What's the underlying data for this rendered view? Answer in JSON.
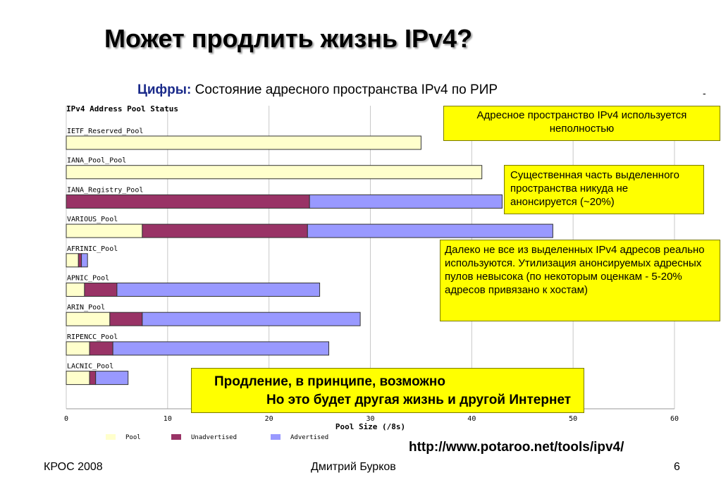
{
  "slide": {
    "title": "Может продлить жизнь IPv4?",
    "subtitle_label": "Цифры:",
    "subtitle_text": " Состояние адресного пространства IPv4 по РИР",
    "dash": "-",
    "callout_1": "Адресное пространство IPv4 используется неполностью",
    "callout_2": "Существенная часть выделенного пространства никуда не анонсируется (~20%)",
    "callout_3": "Далеко не все из выделенных IPv4 адресов реально используются. Утилизация анонсируемых адресных пулов невысока (по некоторым оценкам - 5-20% адресов привязано к хостам)",
    "callout_4_line1": "Продление, в принципе, возможно",
    "callout_4_line2": "Но это будет другая жизнь и другой Интернет",
    "url": "http://www.potaroo.net/tools/ipv4/",
    "footer_left": "КРОС 2008",
    "footer_center": "Дмитрий Бурков",
    "footer_right": "6"
  },
  "colors": {
    "pool": "#ffffcc",
    "unadvertised": "#993366",
    "advertised": "#9999ff"
  },
  "chart_data": {
    "type": "bar",
    "orientation": "horizontal",
    "stacked": true,
    "title": "IPv4 Address Pool Status",
    "xlabel": "Pool Size (/8s)",
    "xlim": [
      0,
      60
    ],
    "xticks": [
      0,
      10,
      20,
      30,
      40,
      50,
      60
    ],
    "grid": true,
    "legend_position": "bottom",
    "categories": [
      "IETF_Reserved_Pool",
      "IANA_Pool_Pool",
      "IANA_Registry_Pool",
      "VARIOUS_Pool",
      "AFRINIC_Pool",
      "APNIC_Pool",
      "ARIN_Pool",
      "RIPENCC_Pool",
      "LACNIC_Pool"
    ],
    "series": [
      {
        "name": "Pool",
        "values": [
          35,
          41,
          0,
          7.5,
          1.2,
          1.8,
          4.3,
          2.3,
          2.3
        ]
      },
      {
        "name": "Unadvertised",
        "values": [
          0,
          0,
          24,
          16.3,
          0.3,
          3.2,
          3.2,
          2.3,
          0.6
        ]
      },
      {
        "name": "Advertised",
        "values": [
          0,
          0,
          19,
          24.2,
          0.6,
          20,
          21.5,
          21.3,
          3.2
        ]
      }
    ]
  }
}
